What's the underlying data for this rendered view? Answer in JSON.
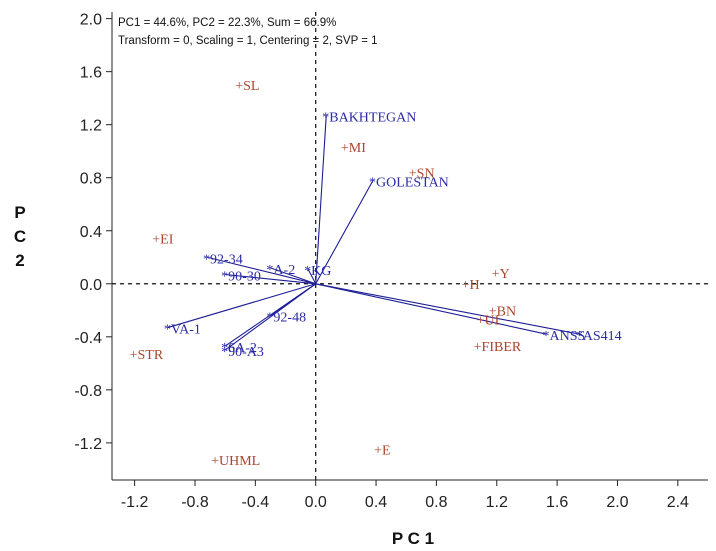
{
  "chart_data": {
    "type": "scatter",
    "header_lines": [
      "PC1 = 44.6%, PC2 = 22.3%, Sum = 66.9%",
      "Transform = 0, Scaling = 1, Centering = 2, SVP = 1"
    ],
    "xlabel": "P C 1",
    "ylabel_chars": [
      "P",
      "C",
      "2"
    ],
    "xlim": [
      -1.35,
      2.6
    ],
    "ylim": [
      -1.48,
      2.05
    ],
    "x_ticks": [
      "-1.2",
      "-0.8",
      "-0.4",
      "0.0",
      "0.4",
      "0.8",
      "1.2",
      "1.6",
      "2.0",
      "2.4"
    ],
    "x_tick_values": [
      -1.2,
      -0.8,
      -0.4,
      0.0,
      0.4,
      0.8,
      1.2,
      1.6,
      2.0,
      2.4
    ],
    "y_ticks": [
      "2.0",
      "1.6",
      "1.2",
      "0.8",
      "0.4",
      "0.0",
      "-0.4",
      "-0.8",
      "-1.2"
    ],
    "y_tick_values": [
      2.0,
      1.6,
      1.2,
      0.8,
      0.4,
      0.0,
      -0.4,
      -0.8,
      -1.2
    ],
    "reference_lines": {
      "x": 0,
      "y": 0,
      "style": "dashed"
    },
    "genotypes": [
      {
        "label": "*BAKHTEGAN",
        "x": 0.07,
        "y": 1.27,
        "vector": true
      },
      {
        "label": "*GOLESTAN",
        "x": 0.38,
        "y": 0.78,
        "vector": true
      },
      {
        "label": "*92-34",
        "x": -0.72,
        "y": 0.2,
        "vector": true
      },
      {
        "label": "*A-2",
        "x": -0.3,
        "y": 0.12,
        "vector": true
      },
      {
        "label": "*KG",
        "x": -0.05,
        "y": 0.11,
        "vector": true
      },
      {
        "label": "*90-30",
        "x": -0.6,
        "y": 0.07,
        "vector": true
      },
      {
        "label": "*VA-1",
        "x": -0.98,
        "y": -0.33,
        "vector": true
      },
      {
        "label": "*92-48",
        "x": -0.3,
        "y": -0.24,
        "vector": true
      },
      {
        "label": "*6A-2",
        "x": -0.6,
        "y": -0.47,
        "vector": true
      },
      {
        "label": "*90-A3",
        "x": -0.6,
        "y": -0.5,
        "vector": true
      },
      {
        "label": "*ANSS",
        "x": 1.53,
        "y": -0.38,
        "vector": true
      },
      {
        "label": "*AS414",
        "x": 1.75,
        "y": -0.38,
        "vector": true
      }
    ],
    "traits": [
      {
        "label": "+SL",
        "x": -0.5,
        "y": 1.5
      },
      {
        "label": "+MI",
        "x": 0.2,
        "y": 1.03
      },
      {
        "label": "+SN",
        "x": 0.65,
        "y": 0.84
      },
      {
        "label": "+EI",
        "x": -1.05,
        "y": 0.34
      },
      {
        "label": "+Y",
        "x": 1.2,
        "y": 0.08
      },
      {
        "label": "+H",
        "x": 1.0,
        "y": 0.0
      },
      {
        "label": "+BN",
        "x": 1.18,
        "y": -0.2
      },
      {
        "label": "+UI",
        "x": 1.1,
        "y": -0.27
      },
      {
        "label": "+FIBER",
        "x": 1.08,
        "y": -0.47
      },
      {
        "label": "+STR",
        "x": -1.2,
        "y": -0.53
      },
      {
        "label": "+UHML",
        "x": -0.66,
        "y": -1.33
      },
      {
        "label": "+E",
        "x": 0.42,
        "y": -1.25
      }
    ],
    "colors": {
      "genotype": "#2a2aa8",
      "trait": "#a8452a",
      "vector": "#1e1e96",
      "axis": "#222222"
    }
  }
}
